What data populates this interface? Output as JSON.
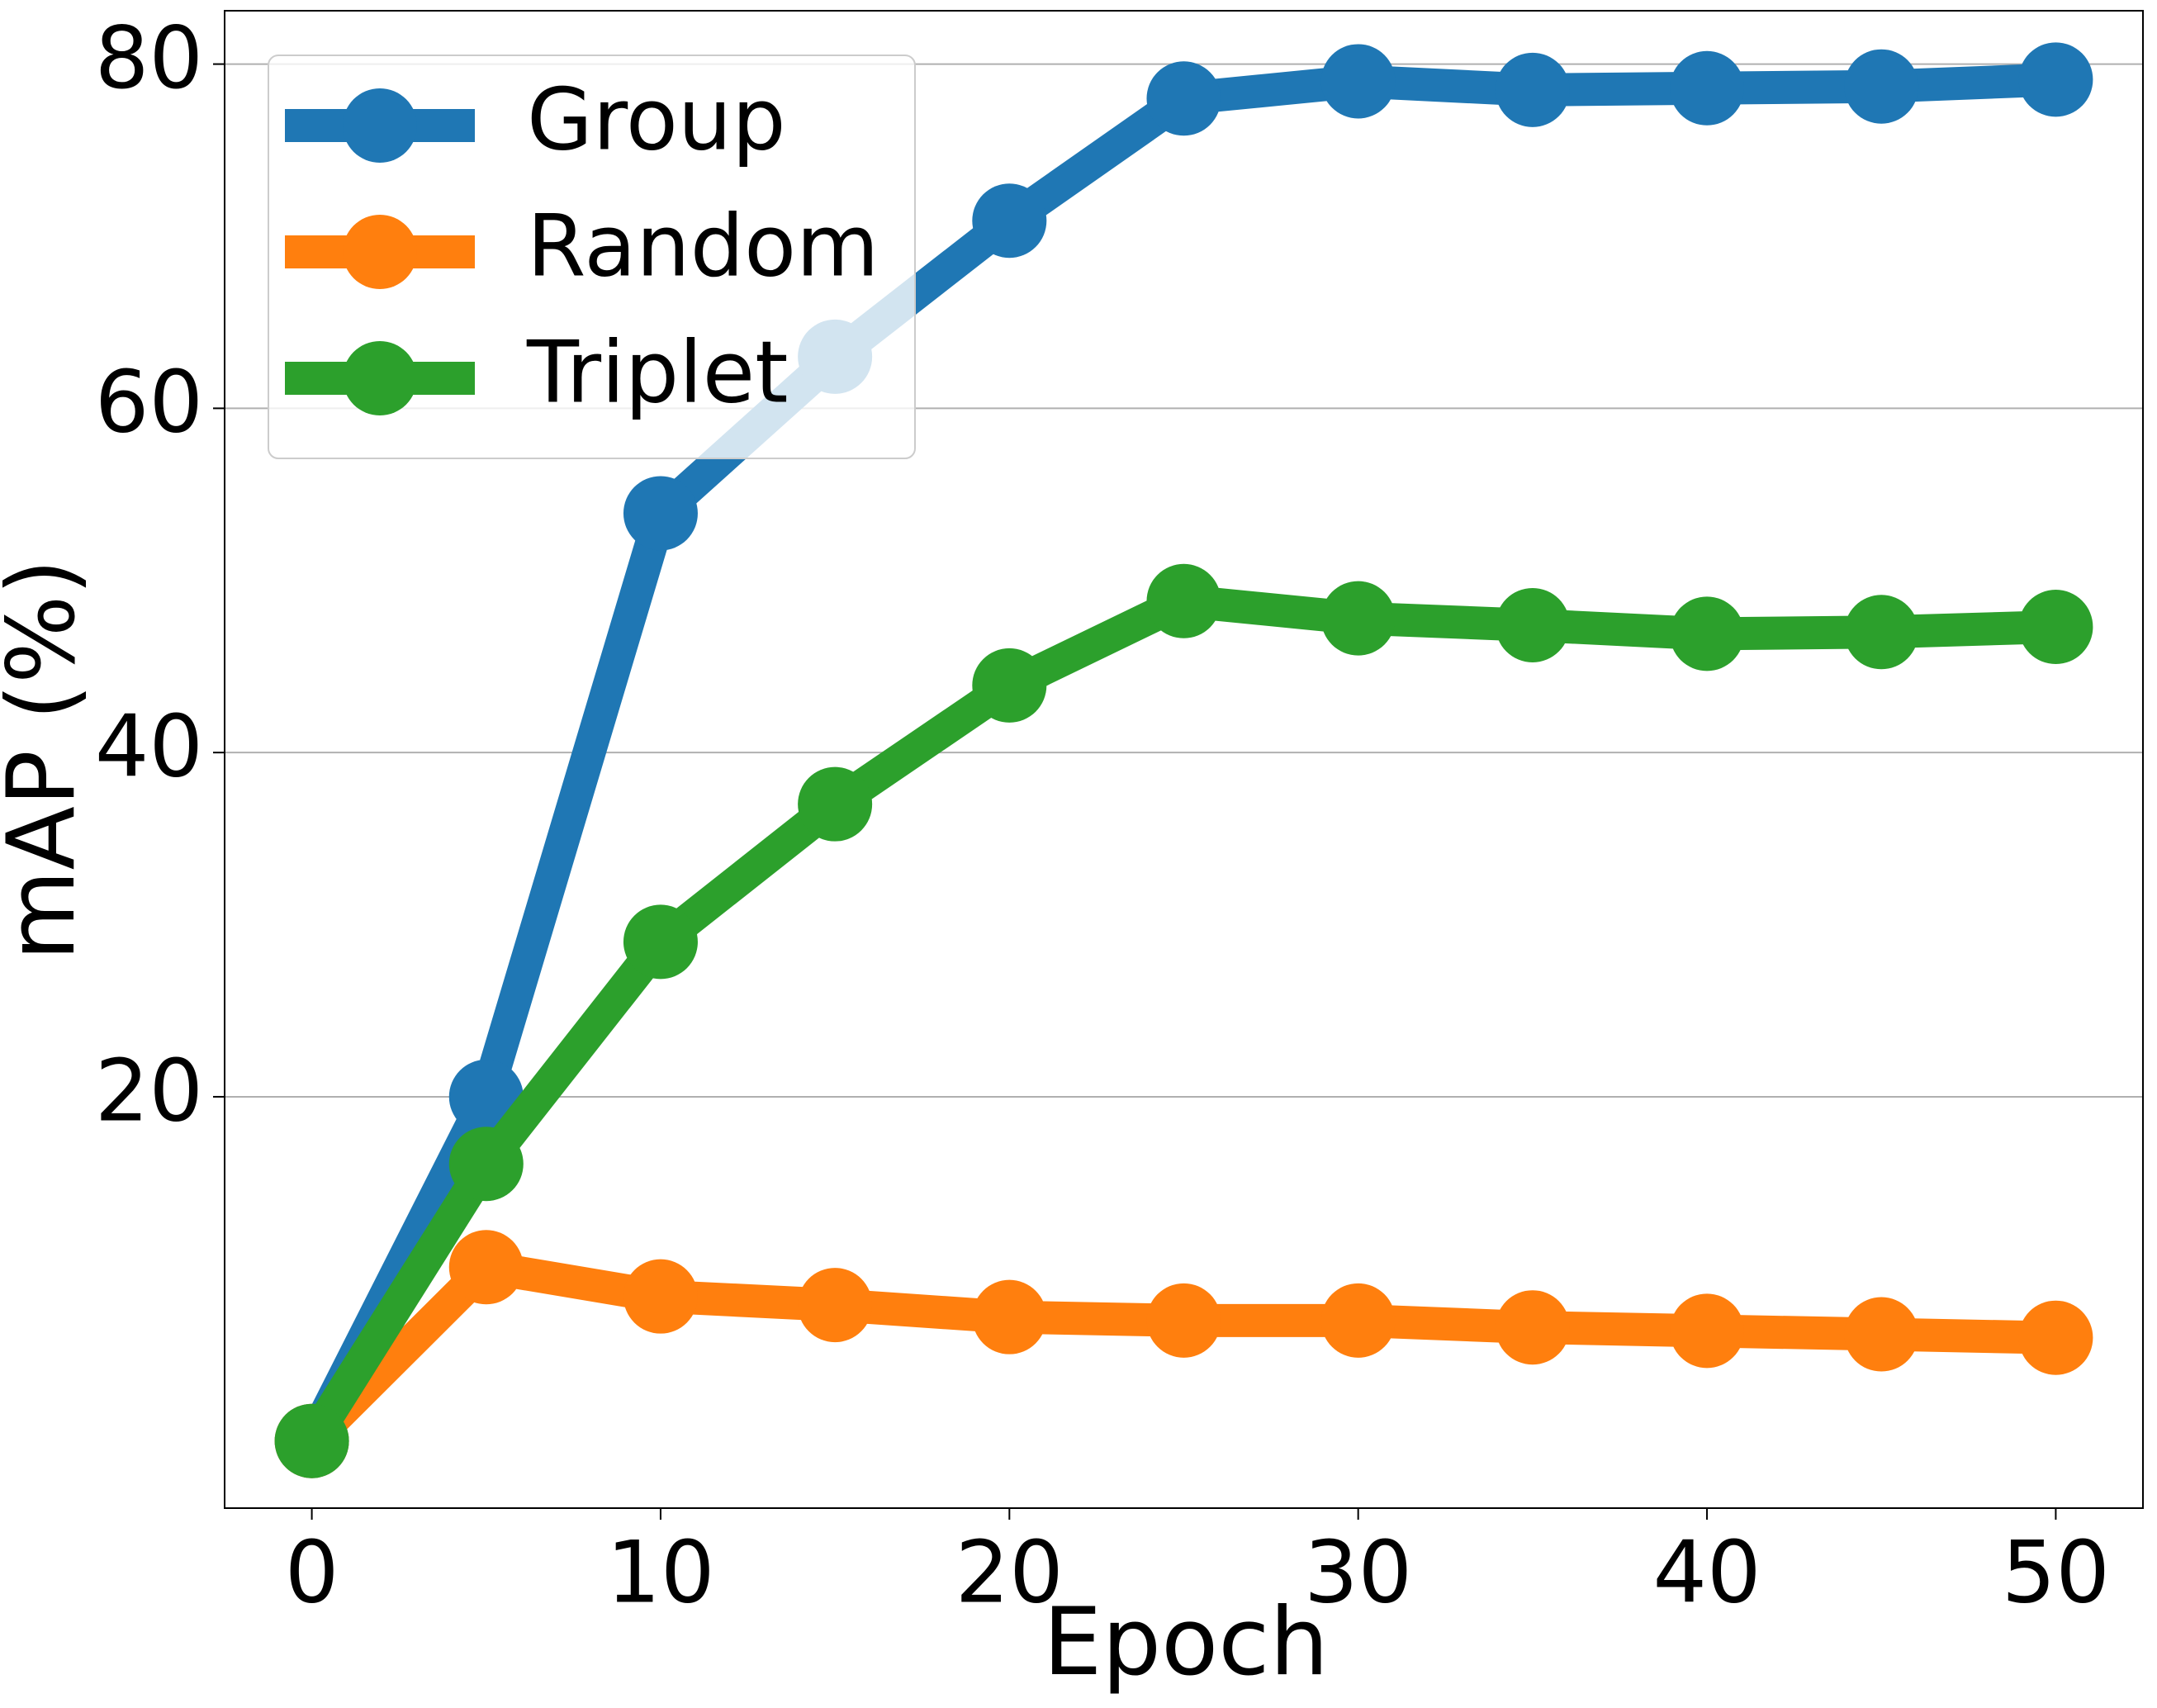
{
  "chart_data": {
    "type": "line",
    "x_label": "Epoch",
    "y_label": "mAP (%)",
    "x": [
      0,
      5,
      10,
      15,
      20,
      25,
      30,
      35,
      40,
      45,
      50
    ],
    "series": [
      {
        "name": "Group",
        "color": "#1f77b4",
        "values": [
          0,
          20,
          53.9,
          63,
          70.9,
          78,
          79,
          78.5,
          78.6,
          78.7,
          79.1
        ]
      },
      {
        "name": "Random",
        "color": "#ff7f0e",
        "values": [
          0,
          10.1,
          8.4,
          7.9,
          7.2,
          7.0,
          7.0,
          6.6,
          6.4,
          6.2,
          6.0
        ]
      },
      {
        "name": "Triplet",
        "color": "#2ca02c",
        "values": [
          0,
          16.1,
          29,
          37,
          43.9,
          48.8,
          47.8,
          47.4,
          46.9,
          47.0,
          47.3
        ]
      }
    ],
    "xlim": [
      -2.5,
      52.5
    ],
    "ylim": [
      -3.9,
      83.1
    ],
    "xticks": [
      0,
      10,
      20,
      30,
      40,
      50
    ],
    "yticks": [
      20,
      40,
      60,
      80
    ],
    "grid": "y",
    "legend": "upper left"
  }
}
